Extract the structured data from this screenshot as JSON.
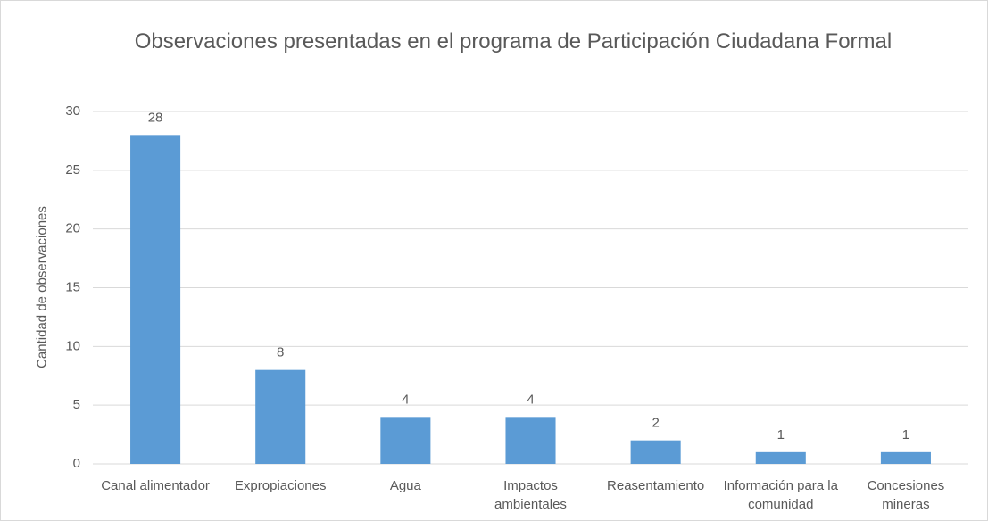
{
  "chart_data": {
    "type": "bar",
    "title": "Observaciones presentadas en el programa de Participación Ciudadana Formal",
    "y_label": "Cantidad de observaciones",
    "categories": [
      "Canal alimentador",
      "Expropiaciones",
      "Agua",
      "Impactos ambientales",
      "Reasentamiento",
      "Información para la comunidad",
      "Concesiones mineras"
    ],
    "values": [
      28,
      8,
      4,
      4,
      2,
      1,
      1
    ],
    "color": "#5b9bd5",
    "ylim": [
      0,
      30
    ],
    "yticks": [
      0,
      5,
      10,
      15,
      20,
      25,
      30
    ],
    "grid": true
  }
}
